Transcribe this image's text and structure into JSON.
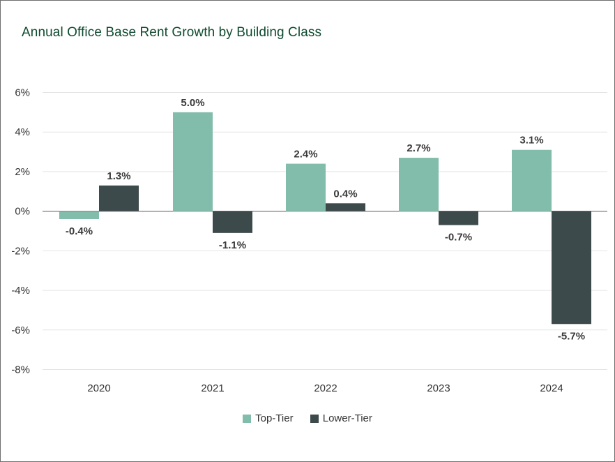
{
  "chart_data": {
    "type": "bar",
    "title": "Annual Office Base Rent Growth by Building Class",
    "categories": [
      "2020",
      "2021",
      "2022",
      "2023",
      "2024"
    ],
    "series": [
      {
        "name": "Top-Tier",
        "values": [
          -0.4,
          5.0,
          2.4,
          2.7,
          3.1
        ],
        "labels": [
          "-0.4%",
          "5.0%",
          "2.4%",
          "2.7%",
          "3.1%"
        ],
        "color": "#82bcaa"
      },
      {
        "name": "Lower-Tier",
        "values": [
          1.3,
          -1.1,
          0.4,
          -0.7,
          -5.7
        ],
        "labels": [
          "1.3%",
          "-1.1%",
          "0.4%",
          "-0.7%",
          "-5.7%"
        ],
        "color": "#3d4a4b"
      }
    ],
    "yticks": [
      6,
      4,
      2,
      0,
      -2,
      -4,
      -6,
      -8
    ],
    "ytick_labels": [
      "6%",
      "4%",
      "2%",
      "0%",
      "-2%",
      "-4%",
      "-6%",
      "-8%"
    ],
    "ylim": [
      -8,
      6
    ],
    "grid": true,
    "legend_position": "bottom-center"
  }
}
